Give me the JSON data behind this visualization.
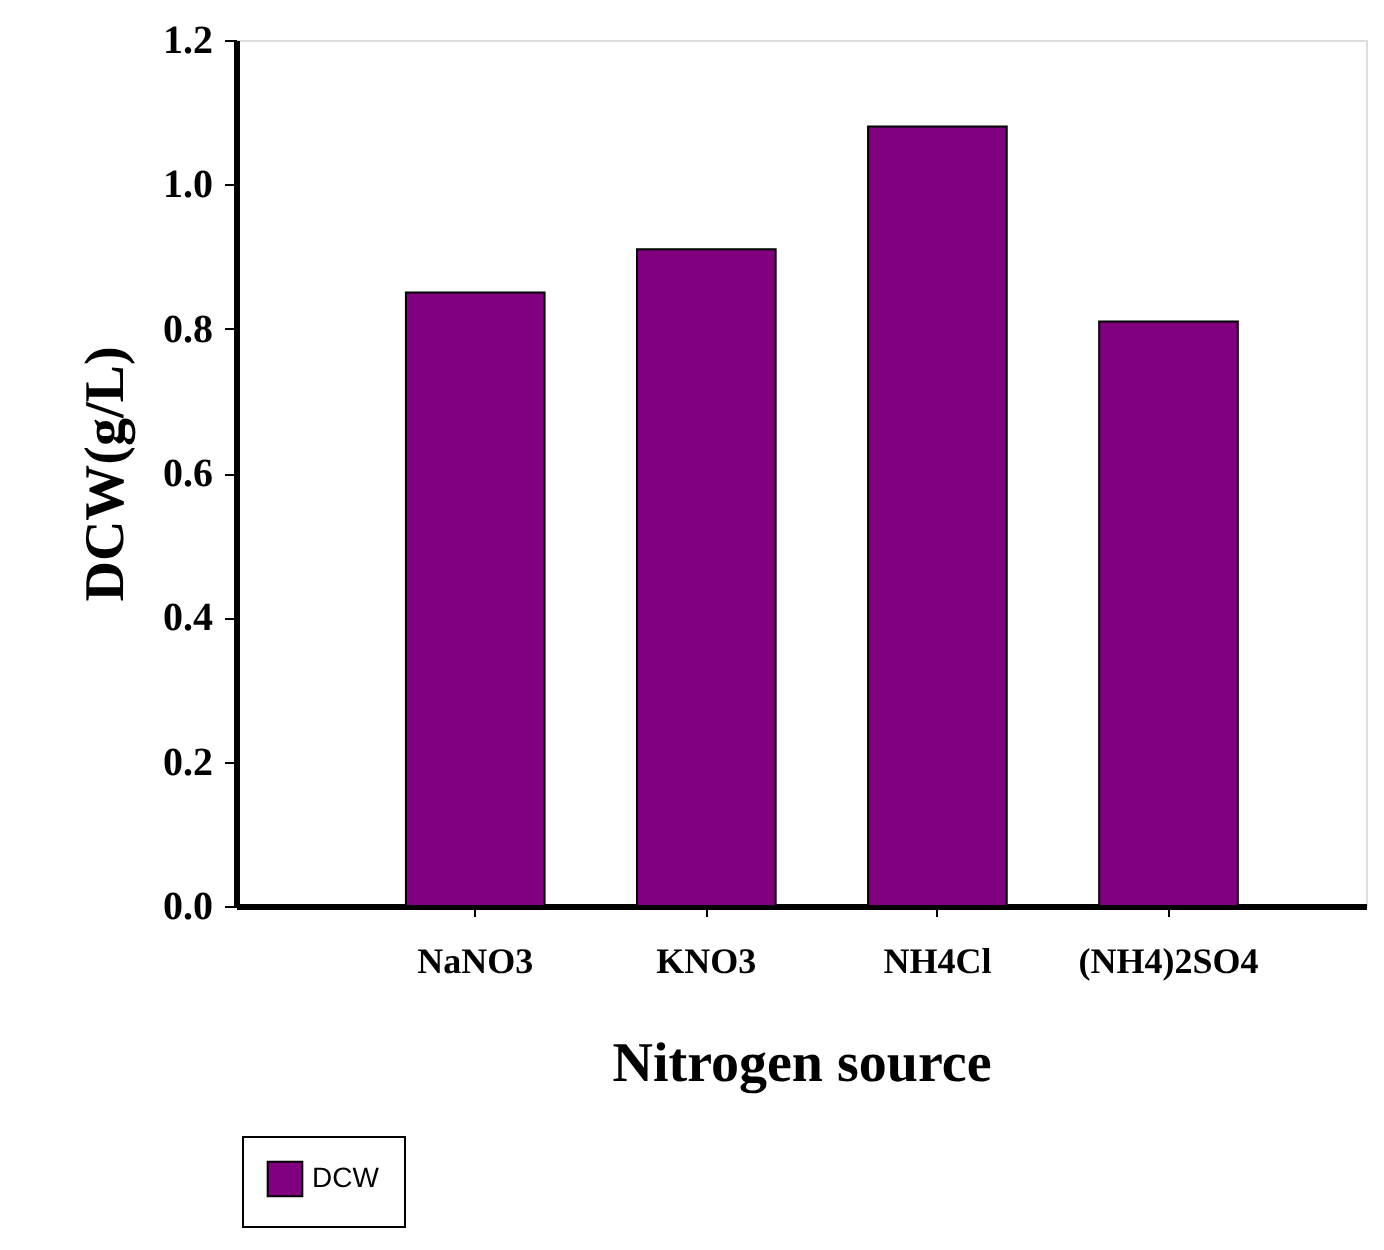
{
  "chart_data": {
    "type": "bar",
    "xlabel": "Nitrogen source",
    "ylabel": "DCW(g/L)",
    "categories": [
      "NaNO3",
      "KNO3",
      "NH4Cl",
      "(NH4)2SO4"
    ],
    "series": [
      {
        "name": "DCW",
        "color": "#800080",
        "values": [
          0.85,
          0.91,
          1.08,
          0.81
        ]
      }
    ],
    "ylim": [
      0,
      1.2
    ],
    "yticks": [
      {
        "value": 0,
        "label": "0.0"
      },
      0.2,
      0.4,
      0.6,
      0.8,
      {
        "value": 1,
        "label": "1.0"
      },
      1.2
    ],
    "grid": false,
    "legend": "bottom left"
  }
}
